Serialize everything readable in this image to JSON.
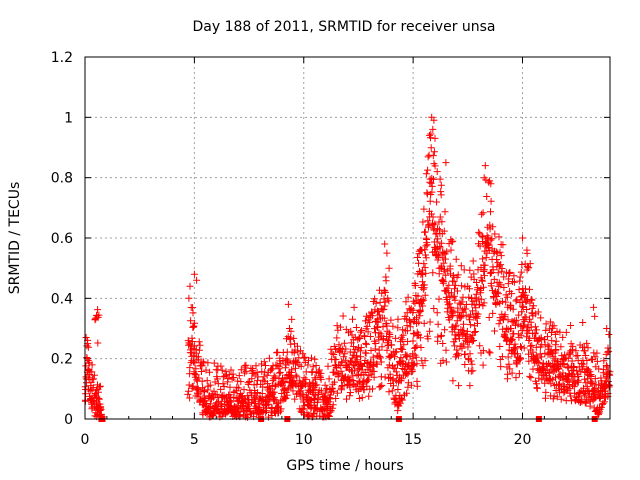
{
  "chart_data": {
    "type": "scatter",
    "title": "Day 188 of 2011, SRMTID for receiver unsa",
    "xlabel": "GPS time / hours",
    "ylabel": "SRMTID / TECUs",
    "xlim": [
      0,
      24
    ],
    "ylim": [
      0,
      1.2
    ],
    "xticks": [
      0,
      5,
      10,
      15,
      20
    ],
    "yticks": [
      0,
      0.2,
      0.4,
      0.6,
      0.8,
      1,
      1.2
    ],
    "xtick_labels": [
      "0",
      "5",
      "10",
      "15",
      "20"
    ],
    "ytick_labels": [
      "0",
      "0.2",
      "0.4",
      "0.6",
      "0.8",
      "1",
      "1.2"
    ],
    "grid": true,
    "marker_color": "#ff0000",
    "zero_markers_x": [
      0.75,
      0.8,
      8.05,
      9.25,
      14.35,
      20.75,
      23.3
    ],
    "series": [
      {
        "name": "SRMTID",
        "marker": "plus",
        "segments": [
          {
            "start": 0.0,
            "end": 0.75,
            "step": 0.012,
            "anchors": [
              [
                0.0,
                0.08
              ],
              [
                0.1,
                0.22
              ],
              [
                0.2,
                0.14
              ],
              [
                0.35,
                0.1
              ],
              [
                0.5,
                0.06
              ],
              [
                0.65,
                0.04
              ],
              [
                0.75,
                0.03
              ]
            ],
            "spread": 0.09,
            "spikes": [
              [
                0.05,
                0.27
              ],
              [
                0.12,
                0.25
              ]
            ]
          },
          {
            "start": 0.45,
            "end": 0.65,
            "step": 0.03,
            "anchors": [
              [
                0.45,
                0.33
              ],
              [
                0.55,
                0.36
              ],
              [
                0.65,
                0.33
              ]
            ],
            "spread": 0.02,
            "spikes": []
          },
          {
            "start": 4.7,
            "end": 11.2,
            "step": 0.013,
            "anchors": [
              [
                4.7,
                0.15
              ],
              [
                4.9,
                0.3
              ],
              [
                5.1,
                0.18
              ],
              [
                5.5,
                0.08
              ],
              [
                6.0,
                0.07
              ],
              [
                6.5,
                0.07
              ],
              [
                7.0,
                0.06
              ],
              [
                7.5,
                0.07
              ],
              [
                8.0,
                0.08
              ],
              [
                8.5,
                0.1
              ],
              [
                9.0,
                0.12
              ],
              [
                9.4,
                0.2
              ],
              [
                9.6,
                0.15
              ],
              [
                10.0,
                0.1
              ],
              [
                10.5,
                0.1
              ],
              [
                11.0,
                0.05
              ],
              [
                11.2,
                0.08
              ]
            ],
            "spread": 0.13,
            "spikes": [
              [
                4.8,
                0.44
              ],
              [
                4.75,
                0.4
              ],
              [
                5.0,
                0.48
              ],
              [
                5.1,
                0.46
              ],
              [
                9.3,
                0.38
              ],
              [
                9.45,
                0.33
              ],
              [
                9.35,
                0.3
              ]
            ]
          },
          {
            "start": 11.2,
            "end": 14.3,
            "step": 0.013,
            "anchors": [
              [
                11.2,
                0.12
              ],
              [
                11.6,
                0.2
              ],
              [
                12.0,
                0.22
              ],
              [
                12.5,
                0.2
              ],
              [
                13.0,
                0.24
              ],
              [
                13.5,
                0.3
              ],
              [
                13.8,
                0.36
              ],
              [
                14.0,
                0.2
              ],
              [
                14.3,
                0.12
              ]
            ],
            "spread": 0.15,
            "spikes": [
              [
                12.3,
                0.37
              ],
              [
                13.7,
                0.58
              ],
              [
                13.8,
                0.55
              ],
              [
                13.9,
                0.5
              ]
            ]
          },
          {
            "start": 14.3,
            "end": 17.4,
            "step": 0.011,
            "anchors": [
              [
                14.3,
                0.18
              ],
              [
                14.8,
                0.25
              ],
              [
                15.2,
                0.36
              ],
              [
                15.5,
                0.55
              ],
              [
                15.8,
                0.85
              ],
              [
                16.0,
                0.7
              ],
              [
                16.3,
                0.6
              ],
              [
                16.7,
                0.45
              ],
              [
                17.0,
                0.35
              ],
              [
                17.4,
                0.32
              ]
            ],
            "spread": 0.2,
            "spikes": [
              [
                15.85,
                1.0
              ],
              [
                15.95,
                0.99
              ],
              [
                15.9,
                0.96
              ],
              [
                15.75,
                0.94
              ],
              [
                16.0,
                0.93
              ],
              [
                16.5,
                0.85
              ],
              [
                16.1,
                0.82
              ]
            ]
          },
          {
            "start": 17.4,
            "end": 20.4,
            "step": 0.012,
            "anchors": [
              [
                17.4,
                0.3
              ],
              [
                17.8,
                0.38
              ],
              [
                18.2,
                0.55
              ],
              [
                18.4,
                0.7
              ],
              [
                18.6,
                0.55
              ],
              [
                19.0,
                0.45
              ],
              [
                19.4,
                0.35
              ],
              [
                19.8,
                0.3
              ],
              [
                20.1,
                0.45
              ],
              [
                20.4,
                0.35
              ]
            ],
            "spread": 0.18,
            "spikes": [
              [
                18.3,
                0.84
              ],
              [
                18.25,
                0.8
              ],
              [
                18.55,
                0.78
              ],
              [
                20.0,
                0.6
              ],
              [
                20.2,
                0.56
              ]
            ]
          },
          {
            "start": 20.4,
            "end": 23.5,
            "step": 0.012,
            "anchors": [
              [
                20.4,
                0.3
              ],
              [
                21.0,
                0.22
              ],
              [
                21.5,
                0.2
              ],
              [
                22.0,
                0.18
              ],
              [
                22.5,
                0.15
              ],
              [
                23.0,
                0.14
              ],
              [
                23.5,
                0.1
              ]
            ],
            "spread": 0.13,
            "spikes": [
              [
                22.75,
                0.32
              ],
              [
                22.2,
                0.31
              ],
              [
                23.25,
                0.37
              ],
              [
                23.3,
                0.34
              ]
            ]
          },
          {
            "start": 23.5,
            "end": 24.0,
            "step": 0.012,
            "anchors": [
              [
                23.5,
                0.08
              ],
              [
                23.75,
                0.12
              ],
              [
                24.0,
                0.18
              ]
            ],
            "spread": 0.09,
            "spikes": [
              [
                23.85,
                0.3
              ],
              [
                23.95,
                0.28
              ]
            ]
          }
        ]
      }
    ]
  }
}
